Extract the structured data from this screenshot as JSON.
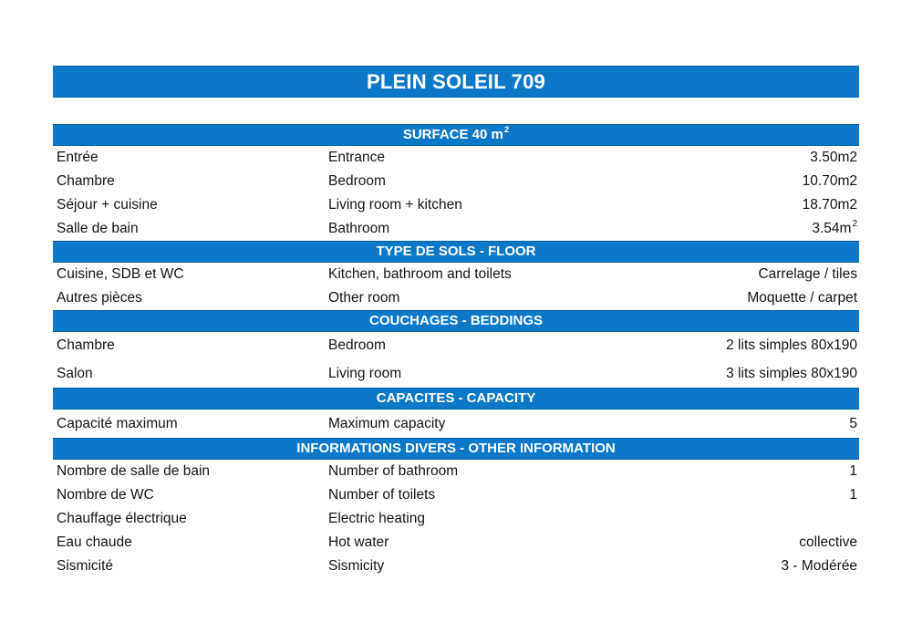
{
  "title": "PLEIN SOLEIL 709",
  "colors": {
    "accent": "#0b78c8",
    "bar_text": "#ffffff",
    "body_text": "#141414"
  },
  "sections": [
    {
      "header": "SURFACE 40 m",
      "header_sup": "2",
      "rows": [
        {
          "fr": "Entrée",
          "en": "Entrance",
          "value": "3.50m2"
        },
        {
          "fr": "Chambre",
          "en": "Bedroom",
          "value": "10.70m2"
        },
        {
          "fr": "Séjour + cuisine",
          "en": "Living room + kitchen",
          "value": "18.70m2"
        },
        {
          "fr": "Salle de bain",
          "en": "Bathroom",
          "value": "3.54m",
          "value_sup": "2"
        }
      ]
    },
    {
      "header": "TYPE DE SOLS - FLOOR",
      "rows": [
        {
          "fr": "Cuisine, SDB et WC",
          "en": "Kitchen, bathroom and toilets",
          "value": "Carrelage / tiles"
        },
        {
          "fr": "Autres pièces",
          "en": "Other room",
          "value": "Moquette / carpet"
        }
      ]
    },
    {
      "header": "COUCHAGES - BEDDINGS",
      "rows": [
        {
          "fr": "Chambre",
          "en": "Bedroom",
          "value": "2 lits simples 80x190"
        },
        {
          "fr": "Salon",
          "en": "Living room",
          "value": "3 lits simples 80x190"
        }
      ]
    },
    {
      "header": "CAPACITES - CAPACITY",
      "rows": [
        {
          "fr": "Capacité maximum",
          "en": "Maximum capacity",
          "value": "5"
        }
      ]
    },
    {
      "header": "INFORMATIONS DIVERS - OTHER INFORMATION",
      "rows": [
        {
          "fr": "Nombre de salle de bain",
          "en": "Number of bathroom",
          "value": "1"
        },
        {
          "fr": "Nombre de WC",
          "en": "Number of toilets",
          "value": "1"
        },
        {
          "fr": "Chauffage électrique",
          "en": "Electric heating",
          "value": ""
        },
        {
          "fr": "Eau chaude",
          "en": "Hot water",
          "value": "collective"
        },
        {
          "fr": "Sismicité",
          "en": "Sismicity",
          "value": "3 - Modérée"
        }
      ]
    }
  ]
}
